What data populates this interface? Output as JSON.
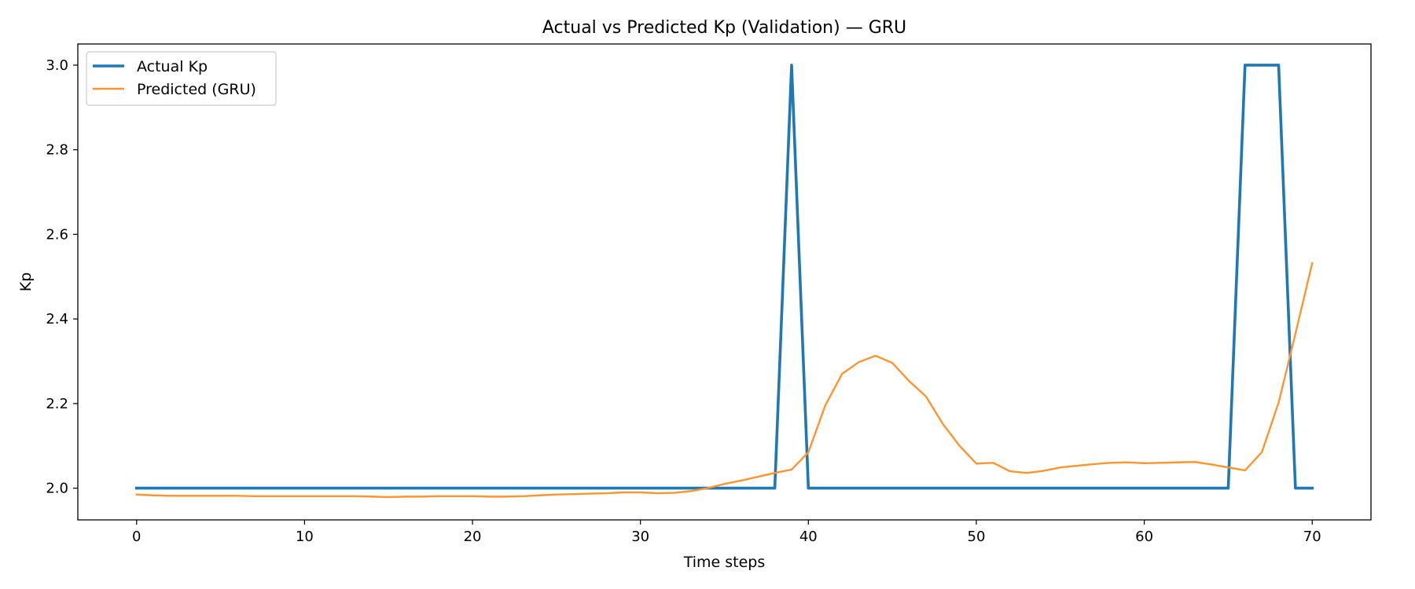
{
  "chart_data": {
    "type": "line",
    "title": "Actual vs Predicted Kp (Validation) — GRU",
    "xlabel": "Time steps",
    "ylabel": "Kp",
    "xlim": [
      -3.5,
      73.5
    ],
    "ylim": [
      1.925,
      3.05
    ],
    "xticks": [
      0,
      10,
      20,
      30,
      40,
      50,
      60,
      70
    ],
    "yticks": [
      2.0,
      2.2,
      2.4,
      2.6,
      2.8,
      3.0
    ],
    "ytick_labels": [
      "2.0",
      "2.2",
      "2.4",
      "2.6",
      "2.8",
      "3.0"
    ],
    "grid": false,
    "legend_position": "top-left",
    "series": [
      {
        "name": "Actual Kp",
        "color": "#1f77b4",
        "x": [
          0,
          38,
          39,
          40,
          65,
          66,
          68,
          69,
          70
        ],
        "y": [
          2.0,
          2.0,
          3.0,
          2.0,
          2.0,
          3.0,
          3.0,
          2.0,
          2.0
        ]
      },
      {
        "name": "Predicted (GRU)",
        "color": "#ff9530",
        "x": [
          0,
          1,
          2,
          3,
          4,
          5,
          6,
          7,
          8,
          9,
          10,
          11,
          12,
          13,
          14,
          15,
          16,
          17,
          18,
          19,
          20,
          21,
          22,
          23,
          24,
          25,
          26,
          27,
          28,
          29,
          30,
          31,
          32,
          33,
          34,
          35,
          36,
          37,
          38,
          39,
          40,
          41,
          42,
          43,
          44,
          45,
          46,
          47,
          48,
          49,
          50,
          51,
          52,
          53,
          54,
          55,
          56,
          57,
          58,
          59,
          60,
          61,
          62,
          63,
          64,
          65,
          66,
          67,
          68,
          69,
          70
        ],
        "y": [
          1.985,
          1.983,
          1.982,
          1.982,
          1.982,
          1.982,
          1.982,
          1.981,
          1.981,
          1.981,
          1.981,
          1.981,
          1.981,
          1.981,
          1.98,
          1.979,
          1.98,
          1.98,
          1.981,
          1.981,
          1.981,
          1.98,
          1.98,
          1.981,
          1.983,
          1.985,
          1.986,
          1.987,
          1.988,
          1.99,
          1.99,
          1.988,
          1.989,
          1.993,
          2.0,
          2.01,
          2.018,
          2.027,
          2.036,
          2.044,
          2.085,
          2.195,
          2.27,
          2.298,
          2.313,
          2.296,
          2.253,
          2.217,
          2.152,
          2.1,
          2.058,
          2.06,
          2.04,
          2.036,
          2.041,
          2.049,
          2.053,
          2.057,
          2.06,
          2.061,
          2.059,
          2.06,
          2.061,
          2.062,
          2.056,
          2.049,
          2.042,
          2.085,
          2.202,
          2.365,
          2.532
        ]
      }
    ]
  }
}
